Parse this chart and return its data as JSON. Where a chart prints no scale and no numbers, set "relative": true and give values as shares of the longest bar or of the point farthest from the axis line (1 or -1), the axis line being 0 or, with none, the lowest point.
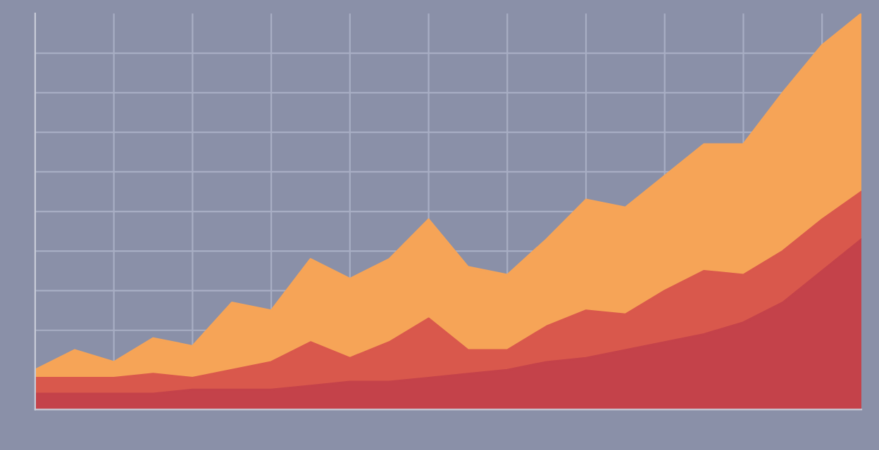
{
  "chart_data": {
    "type": "area",
    "relative": true,
    "stacked": true,
    "grid": true,
    "tick_labels": false,
    "categories": [
      null,
      null,
      null,
      null,
      null,
      null,
      null,
      null,
      null,
      null,
      null,
      null,
      null,
      null,
      null,
      null,
      null,
      null,
      null,
      null,
      null,
      null
    ],
    "series": [
      {
        "color": "#c4424a",
        "values": [
          0.04,
          0.04,
          0.04,
          0.04,
          0.05,
          0.05,
          0.05,
          0.06,
          0.07,
          0.07,
          0.08,
          0.09,
          0.1,
          0.12,
          0.13,
          0.15,
          0.17,
          0.19,
          0.22,
          0.27,
          0.35,
          0.43
        ]
      },
      {
        "color": "#d9584c",
        "values": [
          0.04,
          0.04,
          0.04,
          0.05,
          0.03,
          0.05,
          0.07,
          0.11,
          0.06,
          0.1,
          0.15,
          0.06,
          0.05,
          0.09,
          0.12,
          0.09,
          0.13,
          0.16,
          0.12,
          0.13,
          0.13,
          0.12
        ]
      },
      {
        "color": "#f6a457",
        "values": [
          0.02,
          0.07,
          0.04,
          0.09,
          0.08,
          0.17,
          0.13,
          0.21,
          0.2,
          0.21,
          0.25,
          0.21,
          0.19,
          0.22,
          0.28,
          0.27,
          0.29,
          0.32,
          0.33,
          0.4,
          0.44,
          0.45
        ]
      }
    ]
  }
}
